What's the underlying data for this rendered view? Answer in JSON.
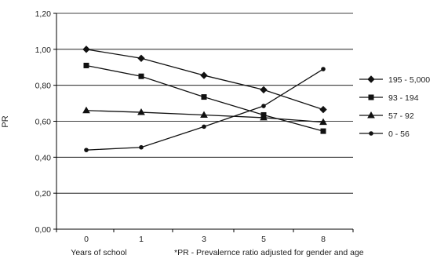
{
  "chart_data": {
    "type": "line",
    "ylabel": "PR",
    "xlabel": "Years of school",
    "footnote": "*PR - Prevalernce ratio adjusted for gender and age",
    "categories": [
      "0",
      "1",
      "3",
      "5",
      "8"
    ],
    "y_ticks": [
      "0,00",
      "0,20",
      "0,40",
      "0,60",
      "0,80",
      "1,00",
      "1,20"
    ],
    "ylim": [
      0,
      1.2
    ],
    "grid": true,
    "legend_position": "right",
    "series": [
      {
        "name": "195 - 5,000",
        "marker": "diamond",
        "values": [
          1.0,
          0.95,
          0.855,
          0.775,
          0.665
        ]
      },
      {
        "name": "93 - 194",
        "marker": "square",
        "values": [
          0.91,
          0.85,
          0.735,
          0.635,
          0.545
        ]
      },
      {
        "name": "57 - 92",
        "marker": "triangle",
        "values": [
          0.66,
          0.65,
          0.635,
          0.62,
          0.595
        ]
      },
      {
        "name": "0 - 56",
        "marker": "circle",
        "values": [
          0.44,
          0.455,
          0.57,
          0.685,
          0.89
        ]
      }
    ]
  }
}
